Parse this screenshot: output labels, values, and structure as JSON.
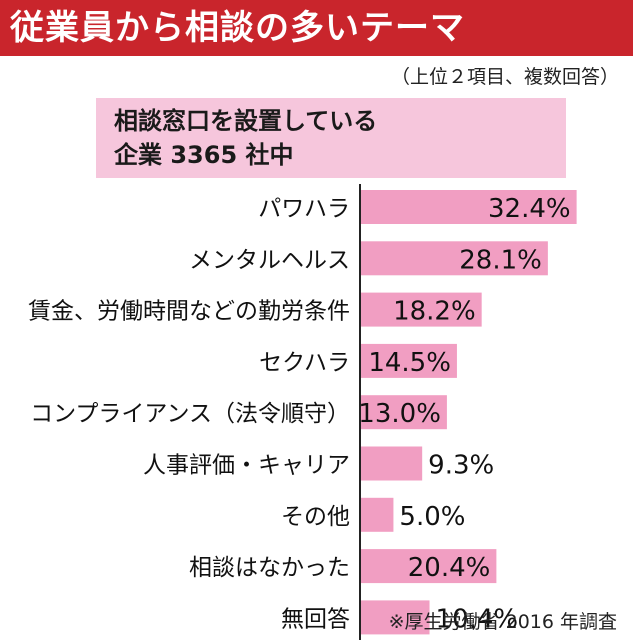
{
  "header": {
    "title": "従業員から相談の多いテーマ",
    "note": "（上位２項目、複数回答）"
  },
  "info": {
    "line1": "相談窓口を設置している",
    "line2": "企業 3365 社中"
  },
  "footer": {
    "source": "※厚生労働省 2016 年調査"
  },
  "colors": {
    "title_bg": "#c9252c",
    "bar": "#f19ec2",
    "info_bg": "#f6c6dc",
    "axis": "#222222"
  },
  "chart_data": {
    "type": "bar",
    "orientation": "horizontal",
    "categories": [
      "パワハラ",
      "メンタルヘルス",
      "賃金、労働時間などの勤労条件",
      "セクハラ",
      "コンプライアンス（法令順守）",
      "人事評価・キャリア",
      "その他",
      "相談はなかった",
      "無回答"
    ],
    "values": [
      32.4,
      28.1,
      18.2,
      14.5,
      13.0,
      9.3,
      5.0,
      20.4,
      10.4
    ],
    "value_labels": [
      "32.4%",
      "28.1%",
      "18.2%",
      "14.5%",
      "13.0%",
      "9.3%",
      "5.0%",
      "20.4%",
      "10.4%"
    ],
    "xlim": [
      0,
      35
    ],
    "grid": false
  }
}
